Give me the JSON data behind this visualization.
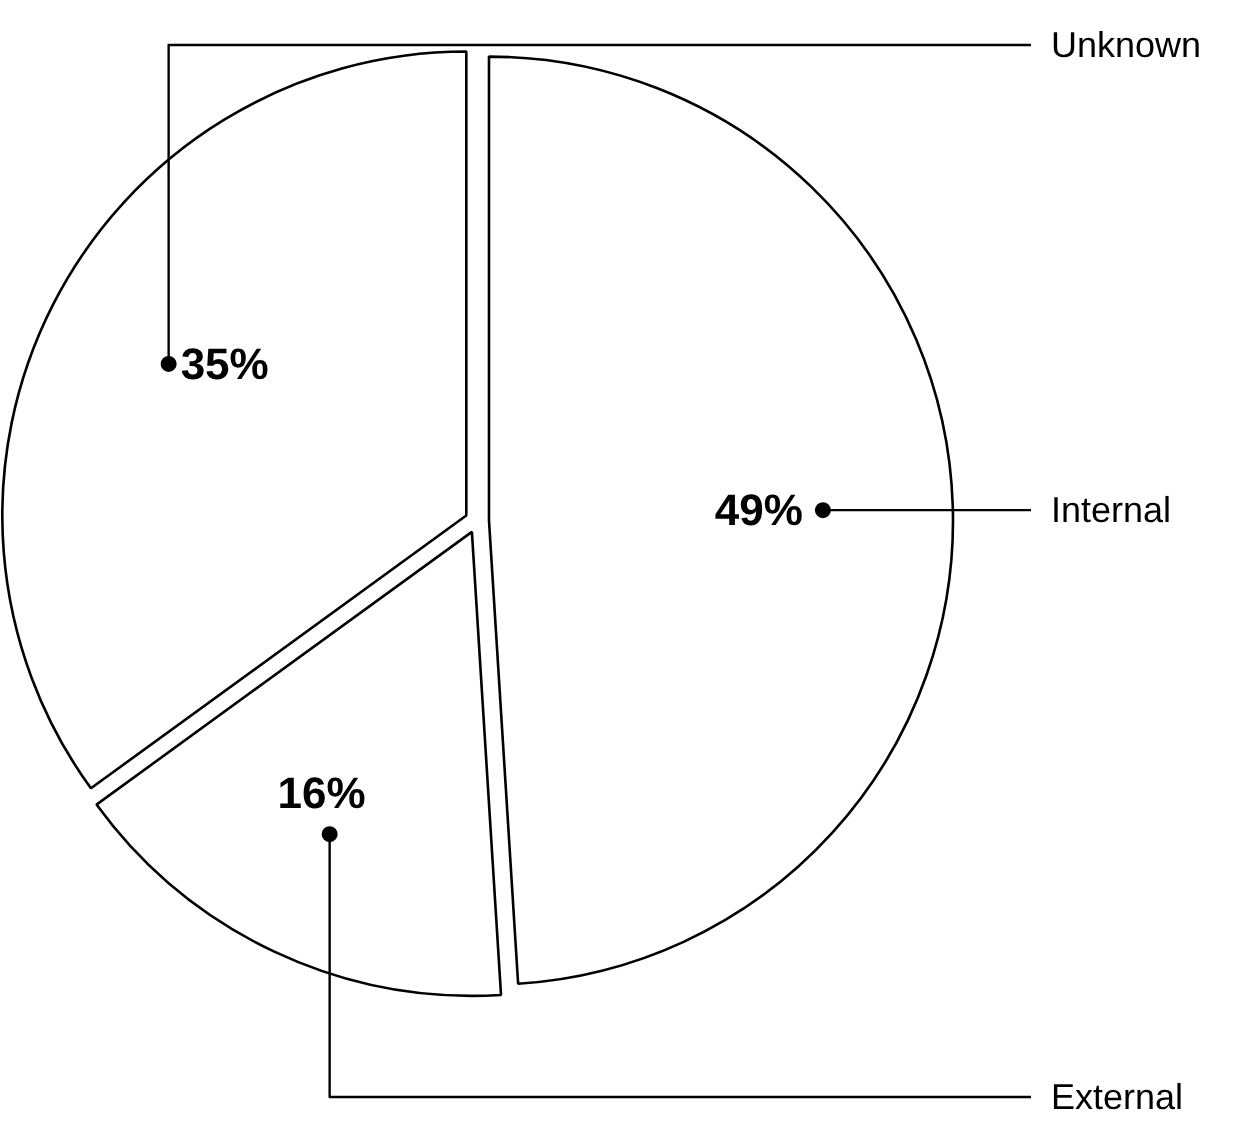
{
  "chart_data": {
    "type": "pie",
    "categories": [
      "Internal",
      "External",
      "Unknown"
    ],
    "values": [
      49,
      16,
      35
    ],
    "colors": [
      "#ffffff",
      "#ffffff",
      "#ffffff"
    ],
    "value_labels": [
      "49%",
      "16%",
      "35%"
    ]
  }
}
